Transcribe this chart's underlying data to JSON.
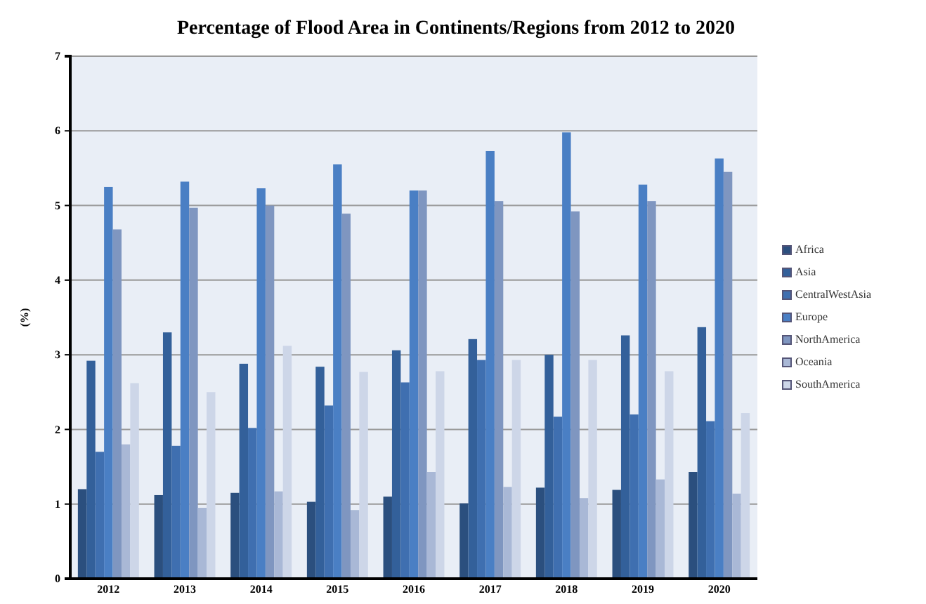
{
  "chart_data": {
    "type": "bar",
    "title": "Percentage of Flood Area in Continents/Regions from 2012 to 2020",
    "ylabel": "(%)",
    "categories": [
      "2012",
      "2013",
      "2014",
      "2015",
      "2016",
      "2017",
      "2018",
      "2019",
      "2020"
    ],
    "series": [
      {
        "name": "Africa",
        "color": "#2b4f7e",
        "values": [
          1.2,
          1.12,
          1.15,
          1.03,
          1.1,
          1.01,
          1.22,
          1.19,
          1.43
        ]
      },
      {
        "name": "Asia",
        "color": "#33609a",
        "values": [
          2.92,
          3.3,
          2.88,
          2.84,
          3.06,
          3.21,
          3.0,
          3.26,
          3.37
        ]
      },
      {
        "name": "CentralWestAsia",
        "color": "#3f6fb0",
        "values": [
          1.7,
          1.78,
          2.02,
          2.32,
          2.63,
          2.93,
          2.17,
          2.2,
          2.11
        ]
      },
      {
        "name": "Europe",
        "color": "#4a7fc4",
        "values": [
          5.25,
          5.32,
          5.23,
          5.55,
          5.2,
          5.73,
          5.98,
          5.28,
          5.63
        ]
      },
      {
        "name": "NorthAmerica",
        "color": "#7f96c0",
        "values": [
          4.68,
          4.97,
          5.0,
          4.89,
          5.2,
          5.06,
          4.92,
          5.06,
          5.45
        ]
      },
      {
        "name": "Oceania",
        "color": "#a9b8d6",
        "values": [
          1.8,
          0.95,
          1.17,
          0.92,
          1.43,
          1.23,
          1.08,
          1.33,
          1.14
        ]
      },
      {
        "name": "SouthAmerica",
        "color": "#cdd6e8",
        "values": [
          2.62,
          2.5,
          3.12,
          2.77,
          2.78,
          2.93,
          2.93,
          2.78,
          2.22
        ]
      }
    ],
    "ylim": [
      0,
      7
    ],
    "yticks": [
      0,
      1,
      2,
      3,
      4,
      5,
      6,
      7
    ],
    "grid": "y",
    "legend": "right"
  }
}
